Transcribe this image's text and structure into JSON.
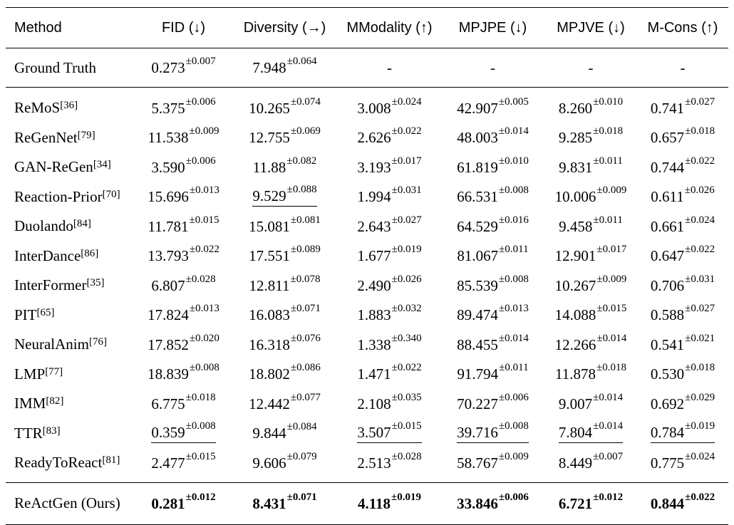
{
  "headers": [
    "Method",
    "FID (↓)",
    "Diversity (→)",
    "MModality (↑)",
    "MPJPE (↓)",
    "MPJVE (↓)",
    "M-Cons (↑)"
  ],
  "ground_truth": {
    "method": "Ground Truth",
    "cells": [
      {
        "v": "0.273",
        "pm": "±0.007"
      },
      {
        "v": "7.948",
        "pm": "±0.064"
      },
      {
        "v": "-",
        "pm": ""
      },
      {
        "v": "-",
        "pm": ""
      },
      {
        "v": "-",
        "pm": ""
      },
      {
        "v": "-",
        "pm": ""
      }
    ]
  },
  "rows": [
    {
      "method": "ReMoS",
      "ref": "[36]",
      "cells": [
        {
          "v": "5.375",
          "pm": "±0.006"
        },
        {
          "v": "10.265",
          "pm": "±0.074"
        },
        {
          "v": "3.008",
          "pm": "±0.024"
        },
        {
          "v": "42.907",
          "pm": "±0.005"
        },
        {
          "v": "8.260",
          "pm": "±0.010"
        },
        {
          "v": "0.741",
          "pm": "±0.027"
        }
      ]
    },
    {
      "method": "ReGenNet",
      "ref": "[79]",
      "cells": [
        {
          "v": "11.538",
          "pm": "±0.009"
        },
        {
          "v": "12.755",
          "pm": "±0.069"
        },
        {
          "v": "2.626",
          "pm": "±0.022"
        },
        {
          "v": "48.003",
          "pm": "±0.014"
        },
        {
          "v": "9.285",
          "pm": "±0.018"
        },
        {
          "v": "0.657",
          "pm": "±0.018"
        }
      ]
    },
    {
      "method": "GAN-ReGen",
      "ref": "[34]",
      "cells": [
        {
          "v": "3.590",
          "pm": "±0.006"
        },
        {
          "v": "11.88",
          "pm": "±0.082"
        },
        {
          "v": "3.193",
          "pm": "±0.017"
        },
        {
          "v": "61.819",
          "pm": "±0.010"
        },
        {
          "v": "9.831",
          "pm": "±0.011"
        },
        {
          "v": "0.744",
          "pm": "±0.022"
        }
      ]
    },
    {
      "method": "Reaction-Prior",
      "ref": "[70]",
      "cells": [
        {
          "v": "15.696",
          "pm": "±0.013"
        },
        {
          "v": "9.529",
          "pm": "±0.088",
          "u": true
        },
        {
          "v": "1.994",
          "pm": "±0.031"
        },
        {
          "v": "66.531",
          "pm": "±0.008"
        },
        {
          "v": "10.006",
          "pm": "±0.009"
        },
        {
          "v": "0.611",
          "pm": "±0.026"
        }
      ]
    },
    {
      "method": "Duolando",
      "ref": "[84]",
      "cells": [
        {
          "v": "11.781",
          "pm": "±0.015"
        },
        {
          "v": "15.081",
          "pm": "±0.081"
        },
        {
          "v": "2.643",
          "pm": "±0.027"
        },
        {
          "v": "64.529",
          "pm": "±0.016"
        },
        {
          "v": "9.458",
          "pm": "±0.011"
        },
        {
          "v": "0.661",
          "pm": "±0.024"
        }
      ]
    },
    {
      "method": "InterDance",
      "ref": "[86]",
      "cells": [
        {
          "v": "13.793",
          "pm": "±0.022"
        },
        {
          "v": "17.551",
          "pm": "±0.089"
        },
        {
          "v": "1.677",
          "pm": "±0.019"
        },
        {
          "v": "81.067",
          "pm": "±0.011"
        },
        {
          "v": "12.901",
          "pm": "±0.017"
        },
        {
          "v": "0.647",
          "pm": "±0.022"
        }
      ]
    },
    {
      "method": "InterFormer",
      "ref": "[35]",
      "cells": [
        {
          "v": "6.807",
          "pm": "±0.028"
        },
        {
          "v": "12.811",
          "pm": "±0.078"
        },
        {
          "v": "2.490",
          "pm": "±0.026"
        },
        {
          "v": "85.539",
          "pm": "±0.008"
        },
        {
          "v": "10.267",
          "pm": "±0.009"
        },
        {
          "v": "0.706",
          "pm": "±0.031"
        }
      ]
    },
    {
      "method": "PIT",
      "ref": "[65]",
      "cells": [
        {
          "v": "17.824",
          "pm": "±0.013"
        },
        {
          "v": "16.083",
          "pm": "±0.071"
        },
        {
          "v": "1.883",
          "pm": "±0.032"
        },
        {
          "v": "89.474",
          "pm": "±0.013"
        },
        {
          "v": "14.088",
          "pm": "±0.015"
        },
        {
          "v": "0.588",
          "pm": "±0.027"
        }
      ]
    },
    {
      "method": "NeuralAnim",
      "ref": "[76]",
      "cells": [
        {
          "v": "17.852",
          "pm": "±0.020"
        },
        {
          "v": "16.318",
          "pm": "±0.076"
        },
        {
          "v": "1.338",
          "pm": "±0.340"
        },
        {
          "v": "88.455",
          "pm": "±0.014"
        },
        {
          "v": "12.266",
          "pm": "±0.014"
        },
        {
          "v": "0.541",
          "pm": "±0.021"
        }
      ]
    },
    {
      "method": "LMP",
      "ref": "[77]",
      "cells": [
        {
          "v": "18.839",
          "pm": "±0.008"
        },
        {
          "v": "18.802",
          "pm": "±0.086"
        },
        {
          "v": "1.471",
          "pm": "±0.022"
        },
        {
          "v": "91.794",
          "pm": "±0.011"
        },
        {
          "v": "11.878",
          "pm": "±0.018"
        },
        {
          "v": "0.530",
          "pm": "±0.018"
        }
      ]
    },
    {
      "method": "IMM",
      "ref": "[82]",
      "cells": [
        {
          "v": "6.775",
          "pm": "±0.018"
        },
        {
          "v": "12.442",
          "pm": "±0.077"
        },
        {
          "v": "2.108",
          "pm": "±0.035"
        },
        {
          "v": "70.227",
          "pm": "±0.006"
        },
        {
          "v": "9.007",
          "pm": "±0.014"
        },
        {
          "v": "0.692",
          "pm": "±0.029"
        }
      ]
    },
    {
      "method": "TTR",
      "ref": "[83]",
      "cells": [
        {
          "v": "0.359",
          "pm": "±0.008",
          "u": true
        },
        {
          "v": "9.844",
          "pm": "±0.084"
        },
        {
          "v": "3.507",
          "pm": "±0.015",
          "u": true
        },
        {
          "v": "39.716",
          "pm": "±0.008",
          "u": true
        },
        {
          "v": "7.804",
          "pm": "±0.014",
          "u": true
        },
        {
          "v": "0.784",
          "pm": "±0.019",
          "u": true
        }
      ]
    },
    {
      "method": "ReadyToReact",
      "ref": "[81]",
      "cells": [
        {
          "v": "2.477",
          "pm": "±0.015"
        },
        {
          "v": "9.606",
          "pm": "±0.079"
        },
        {
          "v": "2.513",
          "pm": "±0.028"
        },
        {
          "v": "58.767",
          "pm": "±0.009"
        },
        {
          "v": "8.449",
          "pm": "±0.007"
        },
        {
          "v": "0.775",
          "pm": "±0.024"
        }
      ]
    }
  ],
  "ours": {
    "method": "ReActGen (Ours)",
    "cells": [
      {
        "v": "0.281",
        "pm": "±0.012"
      },
      {
        "v": "8.431",
        "pm": "±0.071"
      },
      {
        "v": "4.118",
        "pm": "±0.019"
      },
      {
        "v": "33.846",
        "pm": "±0.006"
      },
      {
        "v": "6.721",
        "pm": "±0.012"
      },
      {
        "v": "0.844",
        "pm": "±0.022"
      }
    ]
  }
}
